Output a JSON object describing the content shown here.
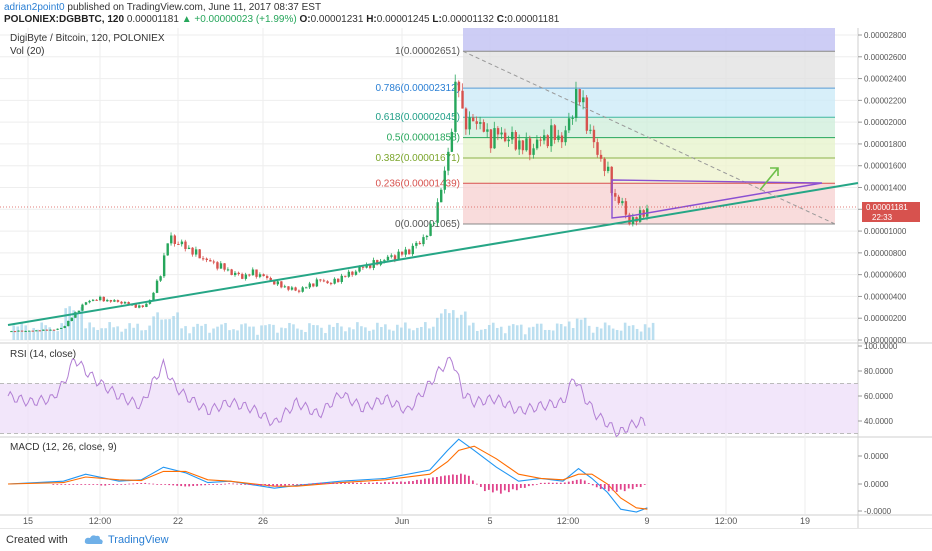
{
  "header": {
    "author": "adrian2point0",
    "published": "published on TradingView.com, June 11, 2017 08:37 EST",
    "symbol": "POLONIEX:DGBBTC, 120",
    "price": "0.00001181",
    "change": "+0.00000023 (+1.99%)",
    "o_label": "O:",
    "o": "0.00001231",
    "h_label": "H:",
    "h": "0.00001245",
    "l_label": "L:",
    "l": "0.00001132",
    "c_label": "C:",
    "c": "0.00001181"
  },
  "chart_info": {
    "title": "DigiByte / Bitcoin, 120, POLONIEX",
    "volume": "Vol (20)",
    "rsi": "RSI (14, close)",
    "macd": "MACD (12, 26, close, 9)"
  },
  "price_tag": {
    "value": "0.00001181",
    "countdown": "22:33"
  },
  "footer": {
    "created_with": "Created with",
    "brand": "TradingView"
  },
  "colors": {
    "up": "#26a65b",
    "down": "#d7524e",
    "trend": "#26a686",
    "triangle": "#8a4fd2",
    "rsi": "#b27fd4",
    "macd": "#2196f3",
    "signal": "#ff6d00",
    "hist": "#e0448c",
    "volume": "#8ecae6",
    "fib_top": "#c8c8f4",
    "fib_786": "#e0e0e0",
    "fib_618": "#c9e9f7",
    "fib_5": "#cdeed9",
    "fib_382": "#e6f3c9",
    "fib_236": "#eef3cc",
    "fib_0": "#f7d0d0"
  },
  "chart_data": [
    {
      "type": "candlestick",
      "title": "DigiByte / Bitcoin, 120, POLONIEX",
      "x_ticks": [
        "15",
        "12:00",
        "22",
        "26",
        "Jun",
        "5",
        "12:00",
        "9",
        "12:00",
        "19"
      ],
      "y_ticks": [
        "0.00002800",
        "0.00002600",
        "0.00002400",
        "0.00002200",
        "0.00002000",
        "0.00001800",
        "0.00001600",
        "0.00001400",
        "0.00001200",
        "0.00001000",
        "0.00000800",
        "0.00000600",
        "0.00000400",
        "0.00000200",
        "0.00000000"
      ],
      "ylim": [
        0,
        2.8e-05
      ],
      "x_range_days": [
        0,
        38
      ],
      "series_close_points": [
        [
          0.0,
          8e-07
        ],
        [
          1.0,
          8.5e-07
        ],
        [
          2.0,
          9.5e-07
        ],
        [
          2.4,
          1.1e-06
        ],
        [
          2.7,
          1.8e-06
        ],
        [
          3.0,
          2.5e-06
        ],
        [
          3.3,
          3.2e-06
        ],
        [
          3.6,
          3.6e-06
        ],
        [
          4.0,
          3.8e-06
        ],
        [
          4.5,
          3.6e-06
        ],
        [
          5.0,
          3.5e-06
        ],
        [
          5.5,
          3.2e-06
        ],
        [
          6.0,
          3e-06
        ],
        [
          6.4,
          3.8e-06
        ],
        [
          6.8,
          6e-06
        ],
        [
          7.2,
          9.5e-06
        ],
        [
          7.5,
          9e-06
        ],
        [
          8.0,
          8.5e-06
        ],
        [
          8.5,
          7.8e-06
        ],
        [
          9.0,
          7.2e-06
        ],
        [
          9.5,
          6.8e-06
        ],
        [
          10.0,
          6.2e-06
        ],
        [
          10.5,
          5.8e-06
        ],
        [
          11.0,
          6.2e-06
        ],
        [
          11.5,
          5.8e-06
        ],
        [
          12.0,
          5.2e-06
        ],
        [
          12.5,
          4.8e-06
        ],
        [
          13.0,
          4.5e-06
        ],
        [
          13.5,
          5e-06
        ],
        [
          14.0,
          5.5e-06
        ],
        [
          14.5,
          5.2e-06
        ],
        [
          15.0,
          5.8e-06
        ],
        [
          15.5,
          6.2e-06
        ],
        [
          16.0,
          6.8e-06
        ],
        [
          16.5,
          7e-06
        ],
        [
          17.0,
          7.5e-06
        ],
        [
          17.5,
          7.8e-06
        ],
        [
          18.0,
          8.2e-06
        ],
        [
          18.5,
          9e-06
        ],
        [
          19.0,
          1.02e-05
        ],
        [
          19.3,
          1.25e-05
        ],
        [
          19.6,
          1.5e-05
        ],
        [
          19.9,
          1.9e-05
        ],
        [
          20.2,
          2.45e-05
        ],
        [
          20.4,
          2.1e-05
        ],
        [
          20.7,
          1.95e-05
        ],
        [
          21.0,
          2.05e-05
        ],
        [
          21.3,
          1.95e-05
        ],
        [
          21.6,
          1.85e-05
        ],
        [
          22.0,
          1.9e-05
        ],
        [
          22.5,
          1.85e-05
        ],
        [
          23.0,
          1.8e-05
        ],
        [
          23.5,
          1.75e-05
        ],
        [
          24.0,
          1.85e-05
        ],
        [
          24.5,
          1.88e-05
        ],
        [
          25.0,
          1.85e-05
        ],
        [
          25.3,
          2.05e-05
        ],
        [
          25.5,
          2.25e-05
        ],
        [
          25.8,
          2.2e-05
        ],
        [
          26.1,
          1.95e-05
        ],
        [
          26.4,
          1.75e-05
        ],
        [
          26.7,
          1.65e-05
        ],
        [
          27.0,
          1.5e-05
        ],
        [
          27.3,
          1.3e-05
        ],
        [
          27.6,
          1.25e-05
        ],
        [
          27.9,
          1.1e-05
        ],
        [
          28.2,
          1.08e-05
        ],
        [
          28.5,
          1.2e-05
        ],
        [
          28.8,
          1.15e-05
        ]
      ]
    },
    {
      "type": "fibonacci",
      "levels": [
        {
          "ratio": 1,
          "label": "1(0.00002651)",
          "value": 2.651e-05
        },
        {
          "ratio": 0.786,
          "label": "0.786(0.00002312)",
          "value": 2.312e-05
        },
        {
          "ratio": 0.618,
          "label": "0.618(0.00002045)",
          "value": 2.045e-05
        },
        {
          "ratio": 0.5,
          "label": "0.5(0.00001858)",
          "value": 1.858e-05
        },
        {
          "ratio": 0.382,
          "label": "0.382(0.00001671)",
          "value": 1.671e-05
        },
        {
          "ratio": 0.236,
          "label": "0.236(0.00001439)",
          "value": 1.439e-05
        },
        {
          "ratio": 0,
          "label": "0(0.00001065)",
          "value": 1.065e-05
        }
      ]
    },
    {
      "type": "line",
      "title": "RSI (14, close)",
      "y_ticks": [
        "100.0000",
        "80.0000",
        "60.0000",
        "40.0000"
      ],
      "ylim": [
        28,
        100
      ],
      "band": [
        30,
        70
      ],
      "series": [
        {
          "values": [
            [
              0,
              60
            ],
            [
              1,
              55
            ],
            [
              2,
              58
            ],
            [
              2.5,
              70
            ],
            [
              3,
              90
            ],
            [
              3.5,
              80
            ],
            [
              4,
              72
            ],
            [
              5,
              60
            ],
            [
              6,
              52
            ],
            [
              6.5,
              70
            ],
            [
              7,
              85
            ],
            [
              7.5,
              68
            ],
            [
              8,
              60
            ],
            [
              9,
              48
            ],
            [
              10,
              55
            ],
            [
              11,
              50
            ],
            [
              12,
              38
            ],
            [
              13,
              55
            ],
            [
              14,
              45
            ],
            [
              15,
              62
            ],
            [
              16,
              50
            ],
            [
              17,
              58
            ],
            [
              18,
              48
            ],
            [
              19,
              70
            ],
            [
              19.5,
              82
            ],
            [
              20,
              90
            ],
            [
              20.5,
              62
            ],
            [
              21,
              55
            ],
            [
              22,
              58
            ],
            [
              23,
              48
            ],
            [
              24,
              52
            ],
            [
              25,
              55
            ],
            [
              25.5,
              75
            ],
            [
              26,
              58
            ],
            [
              26.5,
              45
            ],
            [
              27,
              38
            ],
            [
              27.5,
              30
            ],
            [
              28,
              36
            ],
            [
              28.5,
              40
            ],
            [
              28.8,
              37
            ]
          ]
        }
      ]
    },
    {
      "type": "line",
      "title": "MACD (12, 26, close, 9)",
      "y_ticks": [
        "0.0000",
        "0.0000",
        "-0.0000"
      ],
      "series": [
        {
          "values": [
            [
              0,
              0
            ],
            [
              2.5,
              0.1
            ],
            [
              3.5,
              0.35
            ],
            [
              5,
              0.1
            ],
            [
              6,
              0.15
            ],
            [
              7,
              0.6
            ],
            [
              8,
              0.4
            ],
            [
              9,
              0.05
            ],
            [
              10,
              0.1
            ],
            [
              12,
              -0.15
            ],
            [
              13,
              -0.05
            ],
            [
              15,
              0.1
            ],
            [
              17,
              0.2
            ],
            [
              19,
              0.5
            ],
            [
              19.8,
              1.2
            ],
            [
              20.3,
              1.6
            ],
            [
              21,
              1.2
            ],
            [
              22,
              0.6
            ],
            [
              23,
              0.1
            ],
            [
              24,
              0.2
            ],
            [
              25,
              0.1
            ],
            [
              25.7,
              0.55
            ],
            [
              26.3,
              0.2
            ],
            [
              27,
              -0.3
            ],
            [
              27.6,
              -0.9
            ],
            [
              28.3,
              -1.0
            ],
            [
              28.8,
              -0.85
            ]
          ]
        },
        {
          "values": [
            [
              0,
              0
            ],
            [
              2.5,
              0.05
            ],
            [
              3.5,
              0.25
            ],
            [
              5,
              0.15
            ],
            [
              6,
              0.12
            ],
            [
              7,
              0.45
            ],
            [
              8,
              0.45
            ],
            [
              9,
              0.15
            ],
            [
              10,
              0.1
            ],
            [
              12,
              -0.08
            ],
            [
              13,
              -0.08
            ],
            [
              15,
              0.05
            ],
            [
              17,
              0.15
            ],
            [
              19,
              0.35
            ],
            [
              19.8,
              0.8
            ],
            [
              20.3,
              1.2
            ],
            [
              21,
              1.35
            ],
            [
              22,
              0.9
            ],
            [
              23,
              0.35
            ],
            [
              24,
              0.2
            ],
            [
              25,
              0.15
            ],
            [
              25.7,
              0.35
            ],
            [
              26.3,
              0.35
            ],
            [
              27,
              0.0
            ],
            [
              27.6,
              -0.5
            ],
            [
              28.3,
              -0.85
            ],
            [
              28.8,
              -0.9
            ]
          ]
        }
      ],
      "histogram": [
        [
          4,
          -0.08
        ],
        [
          6,
          0.05
        ],
        [
          8,
          -0.1
        ],
        [
          10,
          0.03
        ],
        [
          12,
          -0.1
        ],
        [
          14,
          0.05
        ],
        [
          16,
          0.05
        ],
        [
          18,
          0.1
        ],
        [
          19.8,
          0.35
        ],
        [
          20.6,
          0.4
        ],
        [
          21.4,
          -0.25
        ],
        [
          22.2,
          -0.35
        ],
        [
          23,
          -0.2
        ],
        [
          24,
          0.05
        ],
        [
          25,
          0.05
        ],
        [
          25.8,
          0.2
        ],
        [
          26.5,
          -0.15
        ],
        [
          27.2,
          -0.3
        ],
        [
          27.8,
          -0.25
        ],
        [
          28.5,
          -0.1
        ]
      ]
    }
  ]
}
